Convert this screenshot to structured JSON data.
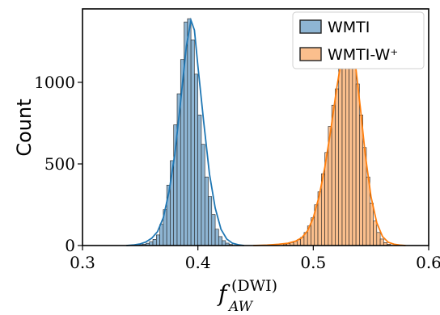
{
  "chart_data": {
    "type": "histogram",
    "xlabel": {
      "base": "f",
      "subscript": "AW",
      "superscript": "(DWI)"
    },
    "ylabel": "Count",
    "xlim": [
      0.3,
      0.6
    ],
    "ylim": [
      0,
      1450
    ],
    "xticks": [
      0.3,
      0.4,
      0.5,
      0.6
    ],
    "yticks": [
      0,
      500,
      1000
    ],
    "xtick_labels": [
      "0.3",
      "0.4",
      "0.5",
      "0.6"
    ],
    "ytick_labels": [
      "0",
      "500",
      "1000"
    ],
    "legend_position": "top-right",
    "grid": false,
    "series": [
      {
        "name": "WMTI",
        "color": "#1f77b4",
        "fill_color": "#8eb5d3",
        "kde": true,
        "bins": [
          {
            "x": 0.3505,
            "w": 0.003,
            "y": 5
          },
          {
            "x": 0.3535,
            "w": 0.003,
            "y": 8
          },
          {
            "x": 0.3565,
            "w": 0.003,
            "y": 14
          },
          {
            "x": 0.3595,
            "w": 0.003,
            "y": 24
          },
          {
            "x": 0.3625,
            "w": 0.003,
            "y": 38
          },
          {
            "x": 0.3655,
            "w": 0.003,
            "y": 65
          },
          {
            "x": 0.3685,
            "w": 0.003,
            "y": 130
          },
          {
            "x": 0.3715,
            "w": 0.003,
            "y": 220
          },
          {
            "x": 0.3745,
            "w": 0.003,
            "y": 370
          },
          {
            "x": 0.3775,
            "w": 0.003,
            "y": 520
          },
          {
            "x": 0.3805,
            "w": 0.003,
            "y": 740
          },
          {
            "x": 0.3835,
            "w": 0.003,
            "y": 930
          },
          {
            "x": 0.3865,
            "w": 0.003,
            "y": 1140
          },
          {
            "x": 0.3895,
            "w": 0.003,
            "y": 1370
          },
          {
            "x": 0.3925,
            "w": 0.003,
            "y": 1390
          },
          {
            "x": 0.3955,
            "w": 0.003,
            "y": 1260
          },
          {
            "x": 0.3985,
            "w": 0.003,
            "y": 1050
          },
          {
            "x": 0.4015,
            "w": 0.003,
            "y": 800
          },
          {
            "x": 0.4045,
            "w": 0.003,
            "y": 620
          },
          {
            "x": 0.4075,
            "w": 0.003,
            "y": 420
          },
          {
            "x": 0.4105,
            "w": 0.003,
            "y": 300
          },
          {
            "x": 0.4135,
            "w": 0.003,
            "y": 190
          },
          {
            "x": 0.4165,
            "w": 0.003,
            "y": 100
          },
          {
            "x": 0.4195,
            "w": 0.003,
            "y": 55
          },
          {
            "x": 0.4225,
            "w": 0.003,
            "y": 30
          },
          {
            "x": 0.4255,
            "w": 0.003,
            "y": 15
          },
          {
            "x": 0.4285,
            "w": 0.003,
            "y": 7
          }
        ],
        "kde_points": [
          [
            0.338,
            0
          ],
          [
            0.345,
            4
          ],
          [
            0.35,
            10
          ],
          [
            0.355,
            22
          ],
          [
            0.36,
            45
          ],
          [
            0.365,
            85
          ],
          [
            0.37,
            170
          ],
          [
            0.375,
            330
          ],
          [
            0.38,
            560
          ],
          [
            0.385,
            880
          ],
          [
            0.39,
            1220
          ],
          [
            0.394,
            1380
          ],
          [
            0.397,
            1320
          ],
          [
            0.4,
            1100
          ],
          [
            0.405,
            760
          ],
          [
            0.41,
            440
          ],
          [
            0.415,
            230
          ],
          [
            0.42,
            100
          ],
          [
            0.425,
            40
          ],
          [
            0.43,
            14
          ],
          [
            0.435,
            5
          ],
          [
            0.44,
            0
          ]
        ]
      },
      {
        "name": "WMTI-W⁺",
        "color": "#ff7f0e",
        "fill_color": "#fbbf8d",
        "kde": true,
        "bins": [
          {
            "x": 0.4755,
            "w": 0.003,
            "y": 8
          },
          {
            "x": 0.4785,
            "w": 0.003,
            "y": 12
          },
          {
            "x": 0.4815,
            "w": 0.003,
            "y": 18
          },
          {
            "x": 0.4845,
            "w": 0.003,
            "y": 25
          },
          {
            "x": 0.4875,
            "w": 0.003,
            "y": 36
          },
          {
            "x": 0.4905,
            "w": 0.003,
            "y": 50
          },
          {
            "x": 0.4935,
            "w": 0.003,
            "y": 80
          },
          {
            "x": 0.4965,
            "w": 0.003,
            "y": 120
          },
          {
            "x": 0.4995,
            "w": 0.003,
            "y": 170
          },
          {
            "x": 0.5025,
            "w": 0.003,
            "y": 250
          },
          {
            "x": 0.5055,
            "w": 0.003,
            "y": 330
          },
          {
            "x": 0.5085,
            "w": 0.003,
            "y": 440
          },
          {
            "x": 0.5115,
            "w": 0.003,
            "y": 570
          },
          {
            "x": 0.5145,
            "w": 0.003,
            "y": 730
          },
          {
            "x": 0.5175,
            "w": 0.003,
            "y": 860
          },
          {
            "x": 0.5205,
            "w": 0.003,
            "y": 960
          },
          {
            "x": 0.5235,
            "w": 0.003,
            "y": 1100
          },
          {
            "x": 0.5265,
            "w": 0.003,
            "y": 1240
          },
          {
            "x": 0.5295,
            "w": 0.003,
            "y": 1300
          },
          {
            "x": 0.5325,
            "w": 0.003,
            "y": 1270
          },
          {
            "x": 0.5355,
            "w": 0.003,
            "y": 1160
          },
          {
            "x": 0.5385,
            "w": 0.003,
            "y": 990
          },
          {
            "x": 0.5415,
            "w": 0.003,
            "y": 800
          },
          {
            "x": 0.5445,
            "w": 0.003,
            "y": 600
          },
          {
            "x": 0.5475,
            "w": 0.003,
            "y": 420
          },
          {
            "x": 0.5505,
            "w": 0.003,
            "y": 260
          },
          {
            "x": 0.5535,
            "w": 0.003,
            "y": 150
          },
          {
            "x": 0.5565,
            "w": 0.003,
            "y": 80
          },
          {
            "x": 0.5595,
            "w": 0.003,
            "y": 40
          },
          {
            "x": 0.5625,
            "w": 0.003,
            "y": 18
          },
          {
            "x": 0.5655,
            "w": 0.003,
            "y": 8
          }
        ],
        "kde_points": [
          [
            0.448,
            0
          ],
          [
            0.46,
            3
          ],
          [
            0.47,
            8
          ],
          [
            0.478,
            14
          ],
          [
            0.485,
            28
          ],
          [
            0.49,
            48
          ],
          [
            0.495,
            90
          ],
          [
            0.5,
            170
          ],
          [
            0.505,
            300
          ],
          [
            0.51,
            480
          ],
          [
            0.515,
            700
          ],
          [
            0.52,
            950
          ],
          [
            0.525,
            1170
          ],
          [
            0.529,
            1280
          ],
          [
            0.533,
            1240
          ],
          [
            0.537,
            1080
          ],
          [
            0.541,
            830
          ],
          [
            0.545,
            560
          ],
          [
            0.55,
            300
          ],
          [
            0.555,
            140
          ],
          [
            0.56,
            55
          ],
          [
            0.565,
            20
          ],
          [
            0.57,
            8
          ],
          [
            0.575,
            3
          ],
          [
            0.58,
            0
          ]
        ]
      }
    ]
  }
}
